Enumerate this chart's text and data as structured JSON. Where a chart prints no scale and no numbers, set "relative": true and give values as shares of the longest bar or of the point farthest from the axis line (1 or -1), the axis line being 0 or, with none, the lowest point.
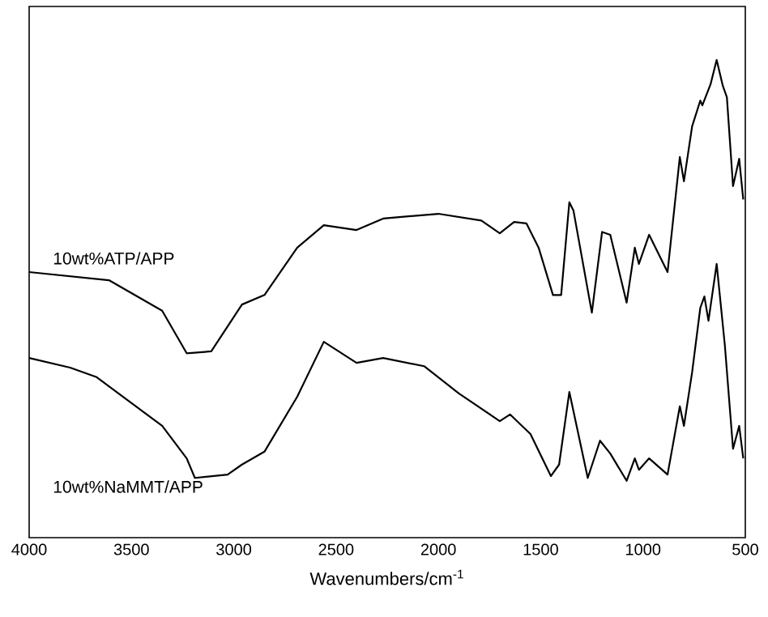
{
  "chart_data": {
    "type": "line",
    "xlabel": "Wavenumbers/cm$^{-1}$",
    "relative": true,
    "xlim": [
      4000,
      500
    ],
    "xticks": [
      4000,
      3500,
      3000,
      2500,
      2000,
      1500,
      1000,
      500
    ],
    "grid": false,
    "marker": "none",
    "line_style": "solid",
    "series": [
      {
        "name": "10wt%ATP/APP",
        "color": "#000000",
        "x": [
          4000,
          3610,
          3350,
          3230,
          3110,
          2960,
          2850,
          2690,
          2560,
          2400,
          2270,
          2000,
          1790,
          1700,
          1630,
          1570,
          1510,
          1440,
          1400,
          1360,
          1340,
          1250,
          1200,
          1160,
          1080,
          1040,
          1020,
          970,
          880,
          820,
          800,
          760,
          720,
          710,
          670,
          640,
          610,
          590,
          560,
          530,
          510
        ],
        "values": [
          0.556,
          0.539,
          0.475,
          0.386,
          0.39,
          0.488,
          0.508,
          0.607,
          0.654,
          0.644,
          0.668,
          0.678,
          0.664,
          0.637,
          0.661,
          0.658,
          0.607,
          0.508,
          0.508,
          0.702,
          0.685,
          0.471,
          0.64,
          0.634,
          0.492,
          0.607,
          0.573,
          0.634,
          0.556,
          0.797,
          0.746,
          0.861,
          0.915,
          0.905,
          0.949,
          1.0,
          0.946,
          0.922,
          0.736,
          0.793,
          0.708
        ]
      },
      {
        "name": "10wt%NaMMT/APP",
        "color": "#000000",
        "x": [
          4000,
          3800,
          3670,
          3350,
          3230,
          3190,
          3030,
          2960,
          2850,
          2690,
          2560,
          2400,
          2270,
          2070,
          1900,
          1700,
          1650,
          1550,
          1450,
          1410,
          1360,
          1270,
          1210,
          1160,
          1080,
          1040,
          1020,
          970,
          880,
          820,
          800,
          760,
          720,
          700,
          680,
          640,
          600,
          560,
          530,
          510
        ],
        "values": [
          0.376,
          0.356,
          0.336,
          0.234,
          0.166,
          0.125,
          0.132,
          0.153,
          0.18,
          0.295,
          0.41,
          0.366,
          0.376,
          0.359,
          0.302,
          0.244,
          0.258,
          0.217,
          0.129,
          0.153,
          0.305,
          0.125,
          0.203,
          0.176,
          0.119,
          0.166,
          0.142,
          0.166,
          0.132,
          0.275,
          0.234,
          0.346,
          0.481,
          0.505,
          0.454,
          0.573,
          0.403,
          0.186,
          0.234,
          0.166
        ]
      }
    ]
  }
}
